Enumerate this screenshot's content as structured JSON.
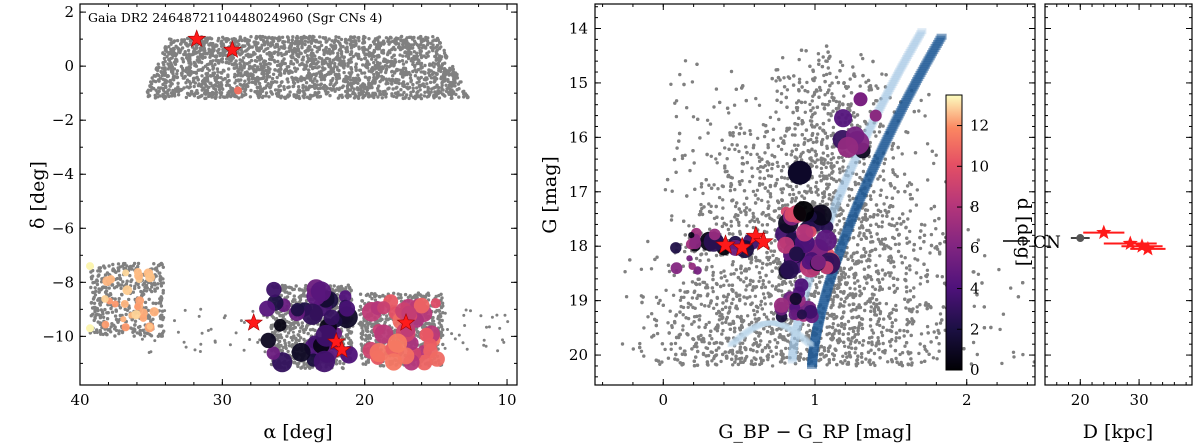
{
  "colors": {
    "background": "#808080",
    "star": "#ff1a1a",
    "track": "#1f5a96"
  },
  "chart_data": [
    {
      "type": "scatter",
      "panel": "sky",
      "title": "Gaia DR2 2464872110448024960 (Sgr CNs 4)",
      "xlabel": "α [deg]",
      "ylabel": "δ [deg]",
      "xlim": [
        40,
        9.3
      ],
      "ylim": [
        -11.8,
        2.3
      ],
      "xticks": [
        "40",
        "30",
        "20",
        "10"
      ],
      "yticks": [
        "2",
        "0",
        "−2",
        "−4",
        "−6",
        "−8",
        "−10"
      ],
      "xtick_values": [
        40,
        30,
        20,
        10
      ],
      "ytick_values": [
        2,
        0,
        -2,
        -4,
        -6,
        -8,
        -10
      ],
      "stars": [
        {
          "x": 31.8,
          "y": 1.0
        },
        {
          "x": 29.3,
          "y": 0.6
        },
        {
          "x": 27.8,
          "y": -9.5
        },
        {
          "x": 22.0,
          "y": -10.2
        },
        {
          "x": 21.6,
          "y": -10.5
        },
        {
          "x": 17.1,
          "y": -9.5
        }
      ]
    },
    {
      "type": "scatter",
      "panel": "cmd",
      "xlabel": "G_BP − G_RP [mag]",
      "ylabel": "G [mag]",
      "xlim": [
        -0.45,
        2.45
      ],
      "ylim": [
        20.55,
        13.55
      ],
      "xticks": [
        "0",
        "1",
        "2"
      ],
      "yticks": [
        "14",
        "15",
        "16",
        "17",
        "18",
        "19",
        "20"
      ],
      "xtick_values": [
        0,
        1,
        2
      ],
      "ytick_values": [
        14,
        15,
        16,
        17,
        18,
        19,
        20
      ],
      "annotation": "CN",
      "stars": [
        {
          "x": 0.41,
          "y": 17.98
        },
        {
          "x": 0.52,
          "y": 18.02
        },
        {
          "x": 0.61,
          "y": 17.82
        },
        {
          "x": 0.66,
          "y": 17.92
        }
      ]
    },
    {
      "type": "colorbar",
      "label": "d [deg]",
      "range": [
        0,
        13.5
      ],
      "ticks": [
        "0",
        "2",
        "4",
        "6",
        "8",
        "10",
        "12"
      ],
      "tick_values": [
        0,
        2,
        4,
        6,
        8,
        10,
        12
      ]
    },
    {
      "type": "scatter",
      "panel": "distance",
      "xlabel": "D [kpc]",
      "xlim": [
        14,
        39
      ],
      "ylim": [
        20.55,
        13.55
      ],
      "xticks": [
        "20",
        "30"
      ],
      "xtick_values": [
        20,
        30
      ],
      "stars": [
        {
          "x": 24.0,
          "y": 17.75,
          "err": 3.5
        },
        {
          "x": 28.5,
          "y": 17.95,
          "err": 4.5
        },
        {
          "x": 30.5,
          "y": 18.0,
          "err": 3.5
        },
        {
          "x": 31.5,
          "y": 18.05,
          "err": 3.0
        }
      ],
      "background_point": {
        "x": 20.0,
        "y": 17.85,
        "err": 1.6
      }
    }
  ]
}
